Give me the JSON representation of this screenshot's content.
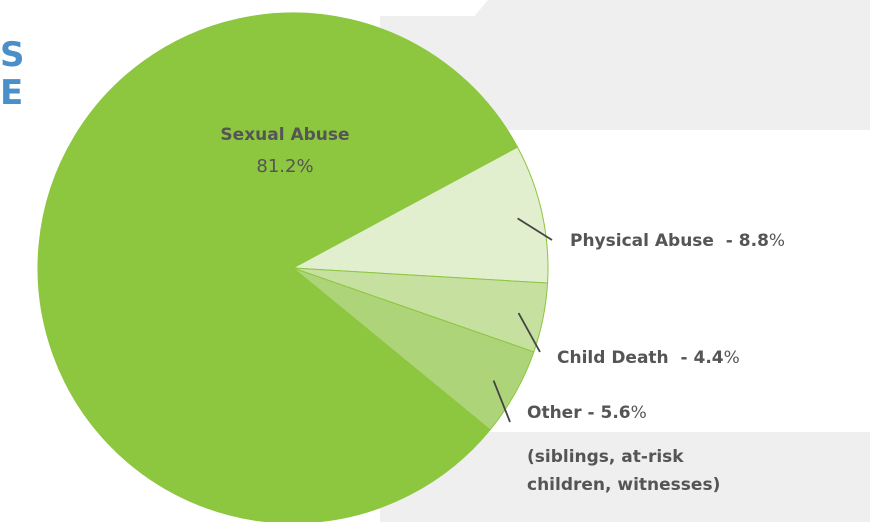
{
  "heading_fragment": {
    "lines": [
      "S",
      "E"
    ]
  },
  "colors": {
    "sexual_abuse": "#8dc63f",
    "physical_abuse": "#e1efcf",
    "child_death": "#c5e09f",
    "other": "#aed479",
    "label_text": "#555555",
    "heading": "#4a8fc8",
    "panel": "#efefef"
  },
  "chart_data": {
    "type": "pie",
    "slices": [
      {
        "name": "Sexual Abuse",
        "value": 81.2,
        "label_value": "81.2",
        "unit": "%",
        "separator": ""
      },
      {
        "name": "Physical Abuse",
        "value": 8.8,
        "label_value": "8.8",
        "unit": "%",
        "separator": "  - "
      },
      {
        "name": "Child Death",
        "value": 4.4,
        "label_value": "4.4",
        "unit": "%",
        "separator": "  - "
      },
      {
        "name": "Other",
        "value": 5.6,
        "label_value": "5.6",
        "unit": "%",
        "separator": " - ",
        "note_lines": [
          "(siblings, at-risk",
          "children, witnesses)"
        ]
      }
    ]
  }
}
